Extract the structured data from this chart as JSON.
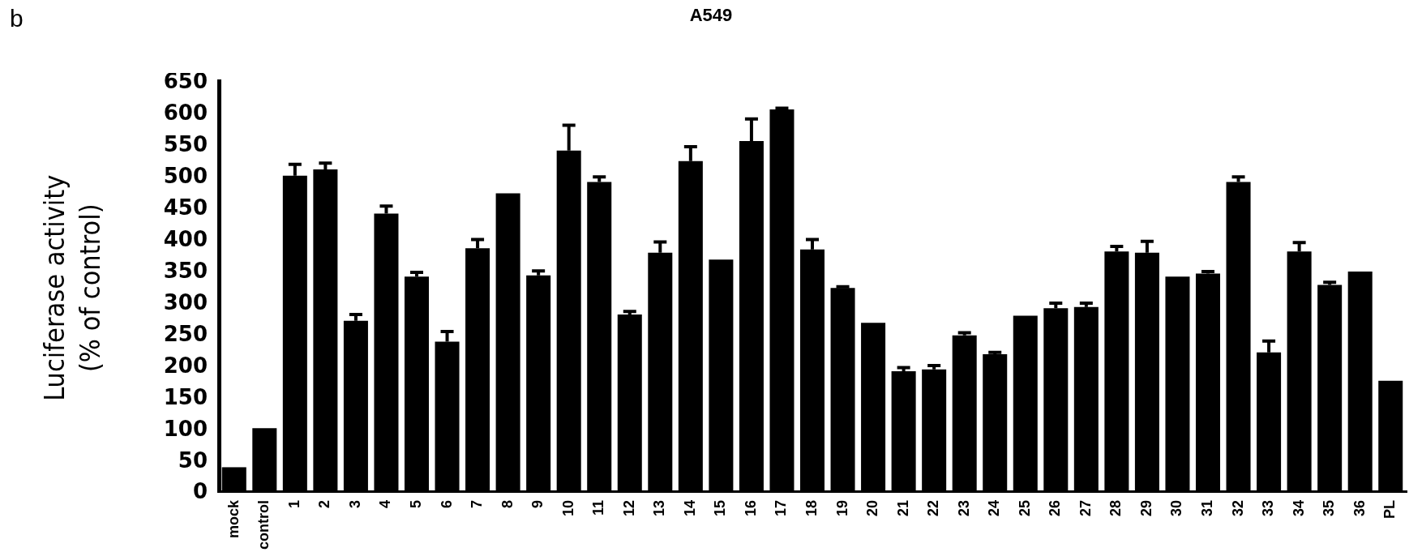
{
  "chart_data": {
    "type": "bar",
    "title": "A549",
    "annotations": [
      "b"
    ],
    "ylabel": "Luciferase activity\n(% of control)",
    "categories": [
      "mock",
      "control",
      "1",
      "2",
      "3",
      "4",
      "5",
      "6",
      "7",
      "8",
      "9",
      "10",
      "11",
      "12",
      "13",
      "14",
      "15",
      "16",
      "17",
      "18",
      "19",
      "20",
      "21",
      "22",
      "23",
      "24",
      "25",
      "26",
      "27",
      "28",
      "29",
      "30",
      "31",
      "32",
      "33",
      "34",
      "35",
      "36",
      "PL"
    ],
    "values": [
      38,
      100,
      500,
      510,
      270,
      440,
      340,
      237,
      385,
      472,
      342,
      540,
      490,
      280,
      378,
      523,
      367,
      555,
      605,
      383,
      322,
      267,
      190,
      193,
      247,
      217,
      278,
      290,
      292,
      380,
      378,
      340,
      345,
      490,
      220,
      380,
      327,
      348,
      175
    ],
    "errors": [
      null,
      null,
      [
        500,
        518
      ],
      [
        510,
        520
      ],
      [
        270,
        280
      ],
      [
        440,
        452
      ],
      [
        340,
        347
      ],
      [
        237,
        253
      ],
      [
        385,
        399
      ],
      null,
      [
        342,
        349
      ],
      [
        540,
        580
      ],
      [
        490,
        498
      ],
      [
        280,
        285
      ],
      [
        378,
        395
      ],
      [
        523,
        546
      ],
      null,
      [
        555,
        590
      ],
      [
        605,
        607
      ],
      [
        383,
        399
      ],
      [
        322,
        324
      ],
      null,
      [
        190,
        196
      ],
      [
        193,
        199
      ],
      [
        247,
        251
      ],
      [
        217,
        220
      ],
      null,
      [
        290,
        298
      ],
      [
        292,
        298
      ],
      [
        380,
        388
      ],
      [
        378,
        396
      ],
      null,
      [
        345,
        348
      ],
      [
        490,
        498
      ],
      [
        220,
        238
      ],
      [
        380,
        394
      ],
      [
        327,
        331
      ],
      null,
      null
    ],
    "color": "#000000",
    "ylim": [
      0,
      650
    ],
    "yticks": [
      0,
      50,
      100,
      150,
      200,
      250,
      300,
      350,
      400,
      450,
      500,
      550,
      600,
      650
    ],
    "grid": false,
    "legend": false
  }
}
